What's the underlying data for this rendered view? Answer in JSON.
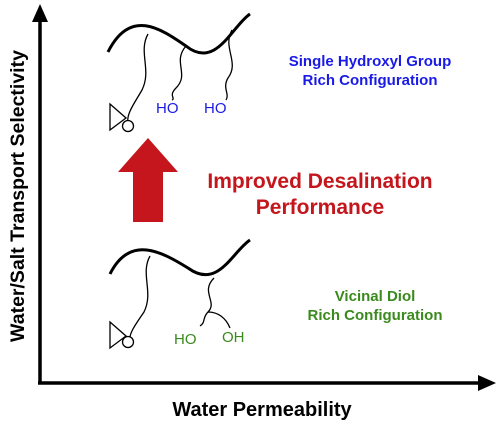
{
  "axes": {
    "y_label": "Water/Salt Transport Selectivity",
    "x_label": "Water Permeability"
  },
  "arrow_label": {
    "line1": "Improved Desalination",
    "line2": "Performance"
  },
  "top_structure": {
    "label_line1": "Single Hydroxyl Group",
    "label_line2": "Rich Configuration",
    "group1": "HO",
    "group2": "HO"
  },
  "bottom_structure": {
    "label_line1": "Vicinal Diol",
    "label_line2": "Rich Configuration",
    "group1": "HO",
    "group2": "OH"
  },
  "colors": {
    "top_label": "#1a1ae6",
    "bottom_label": "#3a8a1e",
    "arrow": "#c4161c",
    "axes": "#000000"
  }
}
